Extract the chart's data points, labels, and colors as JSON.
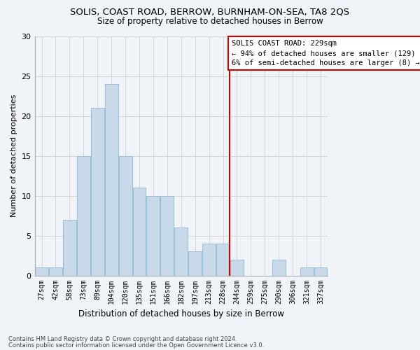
{
  "title_line1": "SOLIS, COAST ROAD, BERROW, BURNHAM-ON-SEA, TA8 2QS",
  "title_line2": "Size of property relative to detached houses in Berrow",
  "xlabel": "Distribution of detached houses by size in Berrow",
  "ylabel": "Number of detached properties",
  "categories": [
    "27sqm",
    "42sqm",
    "58sqm",
    "73sqm",
    "89sqm",
    "104sqm",
    "120sqm",
    "135sqm",
    "151sqm",
    "166sqm",
    "182sqm",
    "197sqm",
    "213sqm",
    "228sqm",
    "244sqm",
    "259sqm",
    "275sqm",
    "290sqm",
    "306sqm",
    "321sqm",
    "337sqm"
  ],
  "values": [
    1,
    1,
    7,
    15,
    21,
    24,
    15,
    11,
    10,
    10,
    6,
    3,
    4,
    4,
    2,
    0,
    0,
    2,
    0,
    1,
    1
  ],
  "bar_color": "#c8daea",
  "bar_edge_color": "#9bbdd4",
  "grid_color": "#d0d0d0",
  "vline_color": "#cc0000",
  "annotation_text": "SOLIS COAST ROAD: 229sqm\n← 94% of detached houses are smaller (129)\n6% of semi-detached houses are larger (8) →",
  "ylim": [
    0,
    30
  ],
  "yticks": [
    0,
    5,
    10,
    15,
    20,
    25,
    30
  ],
  "footer_line1": "Contains HM Land Registry data © Crown copyright and database right 2024.",
  "footer_line2": "Contains public sector information licensed under the Open Government Licence v3.0.",
  "bg_color": "#f0f4f8"
}
